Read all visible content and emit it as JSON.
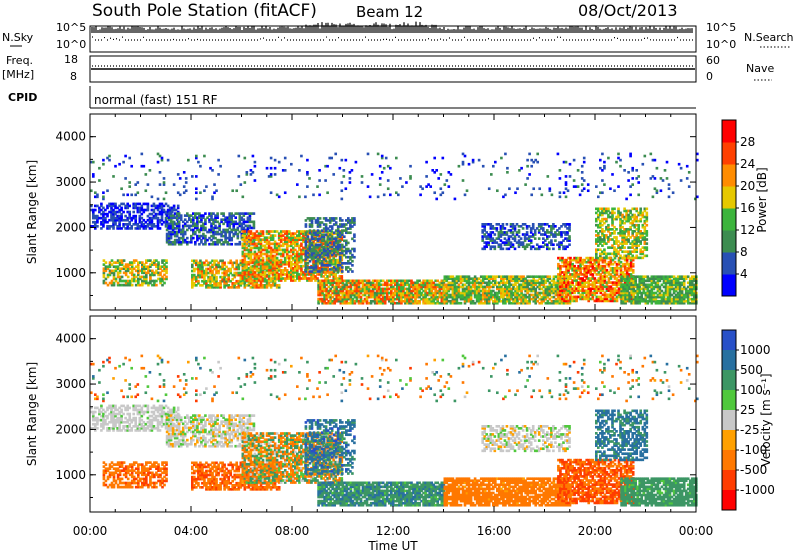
{
  "header": {
    "station": "South Pole Station (fitACF)",
    "beam": "Beam 12",
    "date": "08/Oct/2013"
  },
  "top_panels": {
    "nsky_label": "N.Sky",
    "nsky_ticks": [
      "10^5",
      "10^0"
    ],
    "nsearch_label": "N.Search",
    "nsearch_ticks": [
      "10^5",
      "10^0"
    ],
    "freq_label": "Freq.",
    "freq_unit": "[MHz]",
    "freq_ticks": [
      "18",
      "8"
    ],
    "nave_label": "Nave",
    "nave_ticks": [
      "60",
      "0"
    ],
    "cpid_label": "CPID",
    "cpid_value": "normal (fast) 151 RF"
  },
  "chart_data": [
    {
      "type": "heatmap",
      "name": "power",
      "ylabel": "Slant Range [km]",
      "yticks": [
        "4000",
        "3000",
        "2000",
        "1000"
      ],
      "ylim": [
        180,
        4500
      ],
      "xlim": [
        0,
        24
      ],
      "colorbar": {
        "label": "Power [dB]",
        "ticks": [
          "28",
          "24",
          "20",
          "16",
          "12",
          "8",
          "4"
        ],
        "colors": [
          "#0000ff",
          "#2850b4",
          "#3c8c50",
          "#3cb43c",
          "#e6c800",
          "#ff8c00",
          "#ff4000",
          "#ff0000"
        ]
      }
    },
    {
      "type": "heatmap",
      "name": "velocity",
      "ylabel": "Slant Range [km]",
      "yticks": [
        "4000",
        "3000",
        "2000",
        "1000"
      ],
      "ylim": [
        180,
        4500
      ],
      "xlim": [
        0,
        24
      ],
      "colorbar": {
        "label": "Velocity [m s⁻¹]",
        "ticks": [
          "1000",
          "500",
          "100",
          "25",
          "-25",
          "-100",
          "-500",
          "-1000"
        ],
        "colors": [
          "#2850c8",
          "#2870a0",
          "#3c9664",
          "#50c83c",
          "#c8c8c8",
          "#ffa000",
          "#ff7800",
          "#ff3c00",
          "#ff0000"
        ]
      }
    }
  ],
  "x_axis": {
    "label": "Time UT",
    "ticks": [
      "00:00",
      "04:00",
      "08:00",
      "12:00",
      "16:00",
      "20:00",
      "00:00"
    ]
  }
}
